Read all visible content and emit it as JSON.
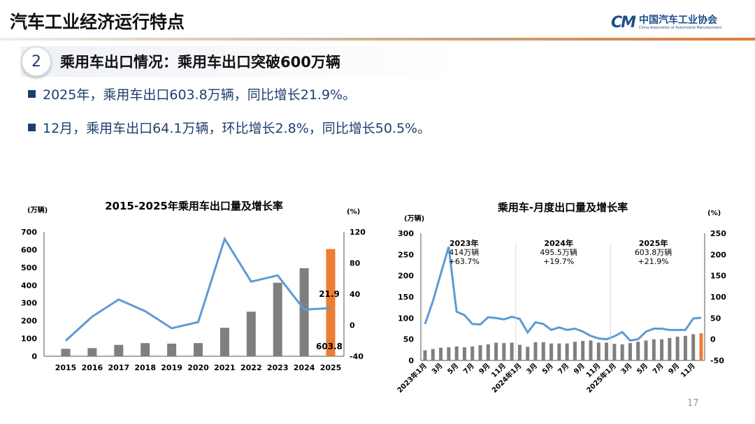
{
  "header": {
    "title": "汽车工业经济运行特点",
    "logo_cn": "中国汽车工业协会",
    "logo_en": "China Association of Automobile Manufacturers",
    "logo_mark": "CM"
  },
  "section": {
    "number": "2",
    "title": "乘用车出口情况：乘用车出口突破600万辆"
  },
  "bullets": [
    "2025年，乘用车出口603.8万辆，同比增长21.9%。",
    "12月，乘用车出口64.1万辆，环比增长2.8%，同比增长50.5%。"
  ],
  "page_number": "17",
  "colors": {
    "bar": "#7f7f7f",
    "highlight": "#ed7d31",
    "line": "#5b9bd5",
    "accent": "#1f3e6e"
  },
  "chart_data": [
    {
      "type": "bar+line",
      "title": "2015-2025年乘用车出口量及增长率",
      "ylabel": "(万辆)",
      "y2label": "(%)",
      "categories": [
        "2015",
        "2016",
        "2017",
        "2018",
        "2019",
        "2020",
        "2021",
        "2022",
        "2023",
        "2024",
        "2025"
      ],
      "ylim": [
        0,
        700
      ],
      "yticks": [
        0,
        100,
        200,
        300,
        400,
        500,
        600,
        700
      ],
      "y2lim": [
        -40,
        120
      ],
      "y2ticks": [
        -40,
        0,
        40,
        80,
        120
      ],
      "series": [
        {
          "kind": "bar",
          "axis": "left",
          "values": [
            42,
            46,
            64,
            74,
            71,
            74,
            160,
            251,
            414,
            495.5,
            603.8
          ]
        },
        {
          "kind": "line",
          "axis": "right",
          "values": [
            -20,
            11,
            33,
            18,
            -4,
            4,
            111,
            56,
            64,
            20,
            21.9
          ]
        }
      ],
      "data_labels": {
        "bar_last": "603.8",
        "line_last": "21.9"
      },
      "grid": false
    },
    {
      "type": "bar+line",
      "title": "乘用车-月度出口量及增长率",
      "ylabel": "(万辆)",
      "y2label": "(%)",
      "xtick_labels": [
        "2023年1月",
        "",
        "3月",
        "",
        "5月",
        "",
        "7月",
        "",
        "9月",
        "",
        "11月",
        "",
        "2024年1月",
        "",
        "3月",
        "",
        "5月",
        "",
        "7月",
        "",
        "9月",
        "",
        "11月",
        "",
        "2025年1月",
        "",
        "3月",
        "",
        "5月",
        "",
        "7月",
        "",
        "9月",
        "",
        "11月",
        ""
      ],
      "ylim": [
        0,
        300
      ],
      "yticks": [
        0,
        50,
        100,
        150,
        200,
        250,
        300
      ],
      "y2lim": [
        -50,
        250
      ],
      "y2ticks": [
        -50,
        0,
        50,
        100,
        150,
        200,
        250
      ],
      "series": [
        {
          "kind": "bar",
          "axis": "left",
          "values": [
            24,
            27,
            30,
            31,
            33,
            31,
            33,
            36,
            38,
            42,
            41,
            42,
            37,
            32,
            43,
            43,
            40,
            40,
            40,
            44,
            46,
            47,
            42,
            42,
            39,
            38,
            41,
            44,
            47,
            50,
            50,
            53,
            56,
            58,
            62,
            64.1
          ]
        },
        {
          "kind": "line",
          "axis": "right",
          "values": [
            36,
            90,
            155,
            218,
            65,
            57,
            36,
            35,
            52,
            50,
            47,
            53,
            48,
            16,
            40,
            36,
            22,
            28,
            22,
            25,
            18,
            8,
            2,
            0,
            7,
            17,
            -3,
            0,
            18,
            25,
            25,
            22,
            22,
            22,
            49,
            50.5
          ]
        }
      ],
      "annotations": [
        {
          "year": "2023年",
          "volume": "414万辆",
          "growth": "+63.7%"
        },
        {
          "year": "2024年",
          "volume": "495.5万辆",
          "growth": "+19.7%"
        },
        {
          "year": "2025年",
          "volume": "603.8万辆",
          "growth": "+21.9%"
        }
      ],
      "grid": false
    }
  ]
}
